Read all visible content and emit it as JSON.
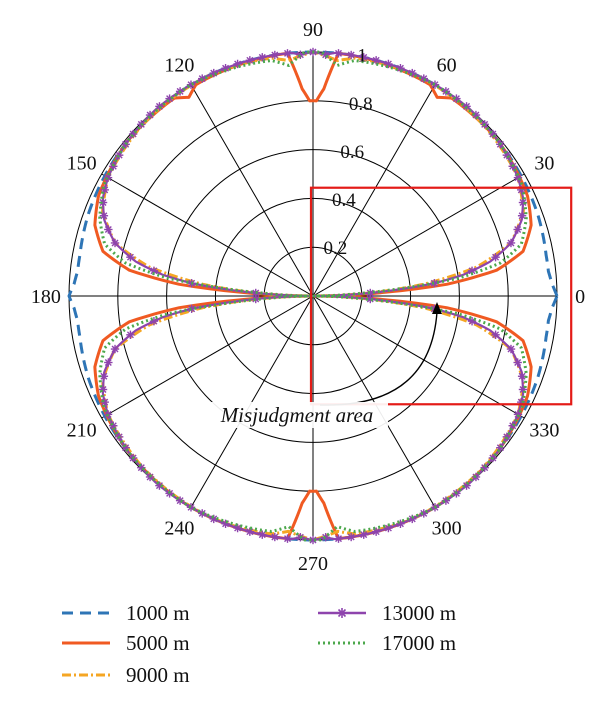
{
  "chart_data": {
    "type": "polar-line",
    "title": "",
    "angle_ticks": [
      "0",
      "30",
      "60",
      "90",
      "120",
      "150",
      "180",
      "210",
      "240",
      "270",
      "300",
      "330"
    ],
    "radial_ticks": [
      "0.2",
      "0.4",
      "0.6",
      "0.8",
      "1"
    ],
    "radial_values": [
      0.2,
      0.4,
      0.6,
      0.8,
      1.0
    ],
    "rlim": [
      0,
      1
    ],
    "grid": true,
    "legend_position": "bottom",
    "annotation": {
      "text": "Misjudgment area",
      "highlight_angles_deg": [
        -25,
        25
      ],
      "highlight_radius": [
        0,
        1.05
      ]
    },
    "series": [
      {
        "name": "1000 m",
        "color": "#2E75B6",
        "dash": "11 7",
        "marker": "none",
        "bottom": [
          [
            0,
            1.0
          ],
          [
            3,
            0.98
          ],
          [
            6,
            0.97
          ],
          [
            10,
            0.97
          ],
          [
            20,
            0.98
          ],
          [
            40,
            0.99
          ],
          [
            60,
            1.0
          ],
          [
            85,
            1.0
          ],
          [
            90,
            1.0
          ]
        ],
        "top": [
          [
            0,
            1.0
          ],
          [
            3,
            0.98
          ],
          [
            6,
            0.97
          ],
          [
            10,
            0.97
          ],
          [
            20,
            0.98
          ],
          [
            40,
            0.99
          ],
          [
            60,
            1.0
          ],
          [
            85,
            1.0
          ],
          [
            90,
            1.0
          ]
        ]
      },
      {
        "name": "5000 m",
        "color": "#F05A22",
        "dash": "",
        "marker": "none",
        "bottom": [
          [
            0,
            0.0
          ],
          [
            3,
            0.3
          ],
          [
            5,
            0.55
          ],
          [
            8,
            0.76
          ],
          [
            12,
            0.88
          ],
          [
            18,
            0.94
          ],
          [
            25,
            0.97
          ],
          [
            40,
            0.99
          ],
          [
            60,
            1.0
          ],
          [
            84,
            1.0
          ],
          [
            87,
            0.85
          ],
          [
            89,
            0.8
          ],
          [
            90,
            0.8
          ]
        ],
        "top": [
          [
            0,
            0.0
          ],
          [
            3,
            0.3
          ],
          [
            5,
            0.55
          ],
          [
            8,
            0.76
          ],
          [
            12,
            0.88
          ],
          [
            18,
            0.94
          ],
          [
            25,
            0.97
          ],
          [
            40,
            0.99
          ],
          [
            55,
            0.99
          ],
          [
            58,
            0.96
          ],
          [
            61,
            0.99
          ],
          [
            84,
            1.0
          ],
          [
            87,
            0.85
          ],
          [
            89,
            0.8
          ],
          [
            90,
            0.8
          ]
        ]
      },
      {
        "name": "9000 m",
        "color": "#F5A623",
        "dash": "9 3 2 3",
        "marker": "none",
        "bottom": [
          [
            0,
            0.0
          ],
          [
            3,
            0.22
          ],
          [
            6,
            0.45
          ],
          [
            10,
            0.68
          ],
          [
            15,
            0.84
          ],
          [
            22,
            0.93
          ],
          [
            30,
            0.97
          ],
          [
            45,
            0.99
          ],
          [
            65,
            1.0
          ],
          [
            80,
            0.99
          ],
          [
            84,
            0.97
          ],
          [
            90,
            1.0
          ]
        ],
        "top": [
          [
            0,
            0.0
          ],
          [
            3,
            0.22
          ],
          [
            6,
            0.45
          ],
          [
            10,
            0.68
          ],
          [
            15,
            0.84
          ],
          [
            22,
            0.93
          ],
          [
            30,
            0.97
          ],
          [
            45,
            0.99
          ],
          [
            65,
            1.0
          ],
          [
            80,
            0.99
          ],
          [
            84,
            0.97
          ],
          [
            90,
            1.0
          ]
        ]
      },
      {
        "name": "13000 m",
        "color": "#8E44AD",
        "dash": "",
        "marker": "star",
        "bottom": [
          [
            0,
            0.0
          ],
          [
            2,
            0.15
          ],
          [
            4,
            0.32
          ],
          [
            6,
            0.5
          ],
          [
            8,
            0.62
          ],
          [
            11,
            0.74
          ],
          [
            15,
            0.84
          ],
          [
            20,
            0.91
          ],
          [
            25,
            0.95
          ],
          [
            30,
            0.97
          ],
          [
            40,
            0.99
          ],
          [
            50,
            1.0
          ],
          [
            70,
            1.0
          ],
          [
            85,
            1.0
          ],
          [
            87,
            0.99
          ],
          [
            90,
            1.0
          ]
        ],
        "top": [
          [
            0,
            0.0
          ],
          [
            2,
            0.15
          ],
          [
            4,
            0.32
          ],
          [
            6,
            0.5
          ],
          [
            8,
            0.62
          ],
          [
            11,
            0.74
          ],
          [
            15,
            0.84
          ],
          [
            20,
            0.91
          ],
          [
            25,
            0.95
          ],
          [
            30,
            0.97
          ],
          [
            40,
            0.99
          ],
          [
            50,
            1.0
          ],
          [
            70,
            1.0
          ],
          [
            85,
            1.0
          ],
          [
            87,
            0.99
          ],
          [
            90,
            1.0
          ]
        ]
      },
      {
        "name": "17000 m",
        "color": "#4CA84C",
        "dash": "2 3",
        "marker": "none",
        "bottom": [
          [
            0,
            0.0
          ],
          [
            3,
            0.18
          ],
          [
            5,
            0.38
          ],
          [
            7,
            0.6
          ],
          [
            10,
            0.78
          ],
          [
            14,
            0.88
          ],
          [
            20,
            0.93
          ],
          [
            28,
            0.97
          ],
          [
            40,
            0.99
          ],
          [
            60,
            1.0
          ],
          [
            80,
            0.98
          ],
          [
            84,
            0.95
          ],
          [
            88,
            1.0
          ],
          [
            90,
            1.0
          ]
        ],
        "top": [
          [
            0,
            0.0
          ],
          [
            3,
            0.18
          ],
          [
            5,
            0.38
          ],
          [
            7,
            0.6
          ],
          [
            10,
            0.78
          ],
          [
            14,
            0.88
          ],
          [
            20,
            0.93
          ],
          [
            28,
            0.97
          ],
          [
            40,
            0.99
          ],
          [
            60,
            1.0
          ],
          [
            80,
            0.98
          ],
          [
            84,
            0.95
          ],
          [
            88,
            1.0
          ],
          [
            90,
            1.0
          ]
        ]
      }
    ]
  }
}
